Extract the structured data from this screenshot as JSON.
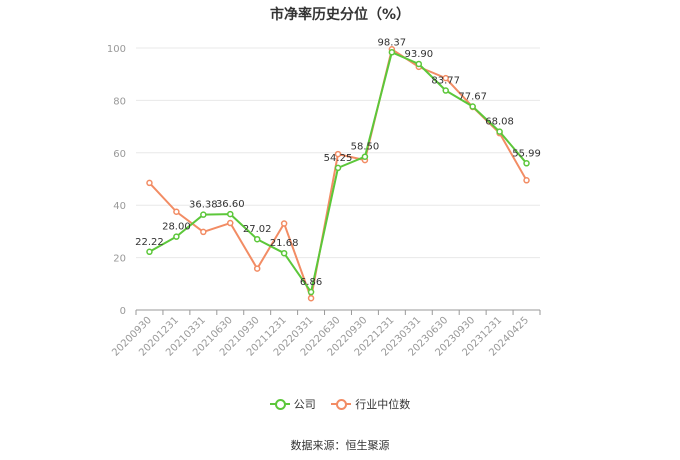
{
  "chart_data": {
    "type": "line",
    "title": "市净率历史分位（%）",
    "x": [
      "20200930",
      "20201231",
      "20210331",
      "20210630",
      "20210930",
      "20211231",
      "20220331",
      "20220630",
      "20220930",
      "20221231",
      "20230331",
      "20230630",
      "20230930",
      "20231231",
      "20240425"
    ],
    "ylim": [
      0,
      100
    ],
    "yticks": [
      "0",
      "20",
      "40",
      "60",
      "80",
      "100"
    ],
    "series": [
      {
        "name": "公司",
        "color": "#5cc73a",
        "values": [
          22.22,
          28.0,
          36.38,
          36.6,
          27.02,
          21.68,
          6.86,
          54.25,
          58.5,
          98.37,
          93.9,
          83.77,
          77.67,
          68.08,
          55.99
        ],
        "labels": [
          "22.22",
          "28.00",
          "36.38",
          "36.60",
          "27.02",
          "21.68",
          "6.86",
          "54.25",
          "58.50",
          "98.37",
          "93.90",
          "83.77",
          "77.67",
          "68.08",
          "55.99"
        ]
      },
      {
        "name": "行业中位数",
        "color": "#f28c64",
        "values": [
          48.5,
          37.5,
          29.8,
          33.2,
          15.8,
          33.0,
          4.5,
          59.5,
          57.2,
          99.5,
          92.8,
          88.5,
          77.5,
          67.5,
          49.5
        ]
      }
    ],
    "grid": true,
    "legend": "bottom"
  },
  "source_text": "数据来源：恒生聚源"
}
